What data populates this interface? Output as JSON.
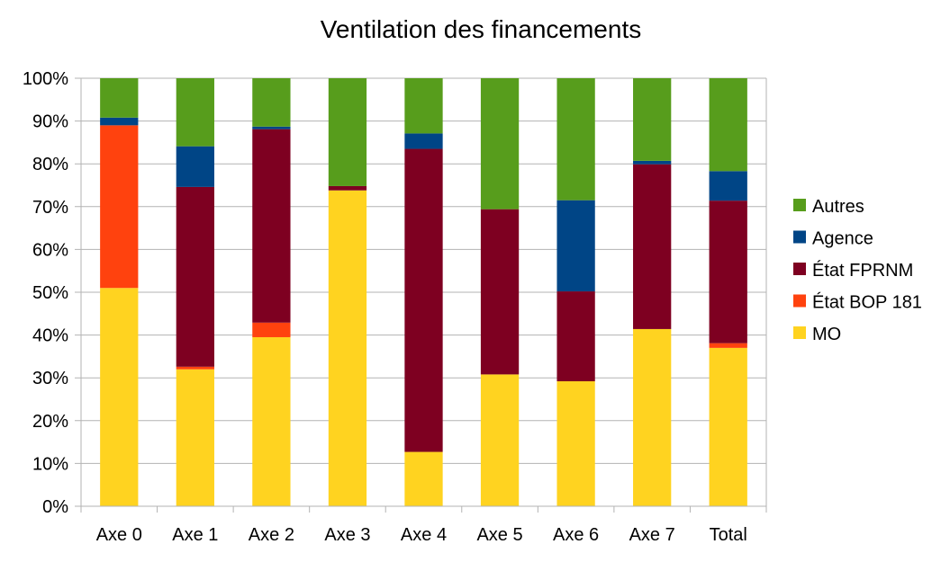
{
  "chart_data": {
    "type": "bar",
    "stacked": true,
    "title": "Ventilation des financements",
    "xlabel": "",
    "ylabel": "",
    "ylim": [
      0,
      100
    ],
    "y_ticks": [
      "0%",
      "10%",
      "20%",
      "30%",
      "40%",
      "50%",
      "60%",
      "70%",
      "80%",
      "90%",
      "100%"
    ],
    "grid": true,
    "legend_position": "right",
    "categories": [
      "Axe 0",
      "Axe 1",
      "Axe 2",
      "Axe 3",
      "Axe 4",
      "Axe 5",
      "Axe 6",
      "Axe 7",
      "Total"
    ],
    "series": [
      {
        "name": "MO",
        "color": "#FFD320",
        "values": [
          51.0,
          32.0,
          39.5,
          73.8,
          12.7,
          30.8,
          29.2,
          41.4,
          37.0
        ]
      },
      {
        "name": "État BOP 181",
        "color": "#FF420E",
        "values": [
          38.0,
          0.6,
          3.4,
          0.0,
          0.0,
          0.0,
          0.0,
          0.0,
          1.1
        ]
      },
      {
        "name": "État FPRNM",
        "color": "#7E0021",
        "values": [
          0.0,
          42.0,
          45.2,
          1.0,
          70.8,
          38.6,
          21.0,
          38.5,
          33.3
        ]
      },
      {
        "name": "Agence",
        "color": "#004586",
        "values": [
          1.8,
          9.5,
          0.6,
          0.0,
          3.6,
          0.0,
          21.3,
          0.8,
          6.9
        ]
      },
      {
        "name": "Autres",
        "color": "#579D1C",
        "values": [
          9.2,
          15.9,
          11.3,
          25.2,
          12.9,
          30.6,
          28.5,
          19.3,
          21.7
        ]
      }
    ]
  }
}
